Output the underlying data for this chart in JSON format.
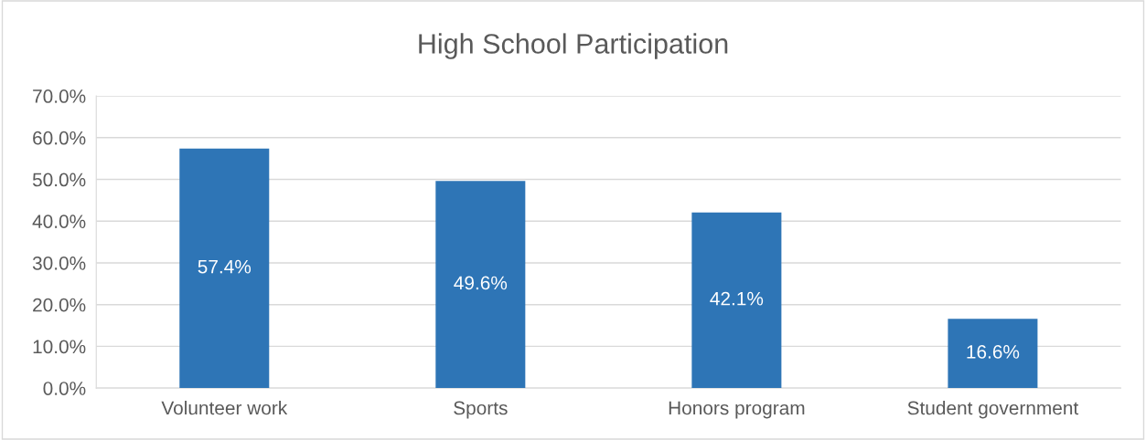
{
  "chart_data": {
    "type": "bar",
    "title": "High School Participation",
    "categories": [
      "Volunteer work",
      "Sports",
      "Honors program",
      "Student government"
    ],
    "values": [
      57.4,
      49.6,
      42.1,
      16.6
    ],
    "value_labels": [
      "57.4%",
      "49.6%",
      "42.1%",
      "16.6%"
    ],
    "color": "#2e75b6",
    "ylim": [
      0,
      70
    ],
    "yticks": [
      {
        "value": 0,
        "label": "0.0%"
      },
      {
        "value": 10,
        "label": "10.0%"
      },
      {
        "value": 20,
        "label": "20.0%"
      },
      {
        "value": 30,
        "label": "30.0%"
      },
      {
        "value": 40,
        "label": "40.0%"
      },
      {
        "value": 50,
        "label": "50.0%"
      },
      {
        "value": 60,
        "label": "60.0%"
      },
      {
        "value": 70,
        "label": "70.0%"
      }
    ],
    "grid": "y",
    "legend": false
  }
}
